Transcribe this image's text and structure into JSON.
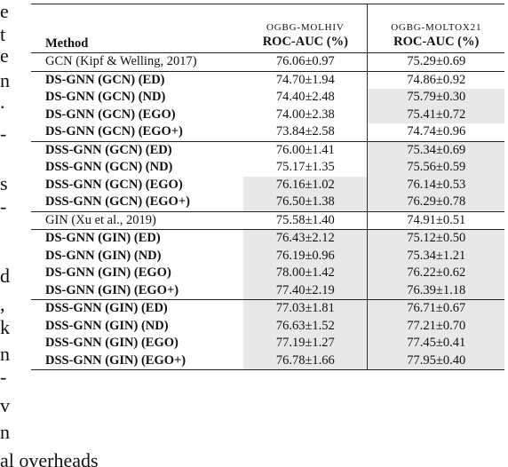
{
  "margin_fragments": [
    "e",
    "t",
    "e",
    "n",
    ".",
    "-",
    "s",
    "-",
    "d",
    ",",
    "k",
    "n",
    "-",
    "v",
    "n"
  ],
  "bottom_fragment": "al overheads",
  "table": {
    "header": {
      "method": "Method",
      "datasets": [
        {
          "name": "OGBG-MOLHIV",
          "metric": "ROC-AUC (%)"
        },
        {
          "name": "OGBG-MOLTOX21",
          "metric": "ROC-AUC (%)"
        }
      ]
    },
    "groups": [
      {
        "baseline": true,
        "rows": [
          {
            "method": "GCN (Kipf & Welling, 2017)",
            "molhiv": "76.06±0.97",
            "moltox21": "75.29±0.69",
            "hl_molhiv": false,
            "hl_moltox21": false
          }
        ]
      },
      {
        "baseline": false,
        "rows": [
          {
            "method": "DS-GNN (GCN) (ED)",
            "molhiv": "74.70±1.94",
            "moltox21": "74.86±0.92",
            "hl_molhiv": false,
            "hl_moltox21": false
          },
          {
            "method": "DS-GNN (GCN) (ND)",
            "molhiv": "74.40±2.48",
            "moltox21": "75.79±0.30",
            "hl_molhiv": false,
            "hl_moltox21": true
          },
          {
            "method": "DS-GNN (GCN) (EGO)",
            "molhiv": "74.00±2.38",
            "moltox21": "75.41±0.72",
            "hl_molhiv": false,
            "hl_moltox21": true
          },
          {
            "method": "DS-GNN (GCN) (EGO+)",
            "molhiv": "73.84±2.58",
            "moltox21": "74.74±0.96",
            "hl_molhiv": false,
            "hl_moltox21": false
          }
        ]
      },
      {
        "baseline": false,
        "rows": [
          {
            "method": "DSS-GNN (GCN) (ED)",
            "molhiv": "76.00±1.41",
            "moltox21": "75.34±0.69",
            "hl_molhiv": false,
            "hl_moltox21": true
          },
          {
            "method": "DSS-GNN (GCN) (ND)",
            "molhiv": "75.17±1.35",
            "moltox21": "75.56±0.59",
            "hl_molhiv": false,
            "hl_moltox21": true
          },
          {
            "method": "DSS-GNN (GCN) (EGO)",
            "molhiv": "76.16±1.02",
            "moltox21": "76.14±0.53",
            "hl_molhiv": true,
            "hl_moltox21": true
          },
          {
            "method": "DSS-GNN (GCN) (EGO+)",
            "molhiv": "76.50±1.38",
            "moltox21": "76.29±0.78",
            "hl_molhiv": true,
            "hl_moltox21": true
          }
        ]
      },
      {
        "baseline": true,
        "rows": [
          {
            "method": "GIN (Xu et al., 2019)",
            "molhiv": "75.58±1.40",
            "moltox21": "74.91±0.51",
            "hl_molhiv": false,
            "hl_moltox21": false
          }
        ]
      },
      {
        "baseline": false,
        "rows": [
          {
            "method": "DS-GNN (GIN) (ED)",
            "molhiv": "76.43±2.12",
            "moltox21": "75.12±0.50",
            "hl_molhiv": true,
            "hl_moltox21": true
          },
          {
            "method": "DS-GNN (GIN) (ND)",
            "molhiv": "76.19±0.96",
            "moltox21": "75.34±1.21",
            "hl_molhiv": true,
            "hl_moltox21": true
          },
          {
            "method": "DS-GNN (GIN) (EGO)",
            "molhiv": "78.00±1.42",
            "moltox21": "76.22±0.62",
            "hl_molhiv": true,
            "hl_moltox21": true
          },
          {
            "method": "DS-GNN (GIN) (EGO+)",
            "molhiv": "77.40±2.19",
            "moltox21": "76.39±1.18",
            "hl_molhiv": true,
            "hl_moltox21": true
          }
        ]
      },
      {
        "baseline": false,
        "rows": [
          {
            "method": "DSS-GNN (GIN) (ED)",
            "molhiv": "77.03±1.81",
            "moltox21": "76.71±0.67",
            "hl_molhiv": true,
            "hl_moltox21": true
          },
          {
            "method": "DSS-GNN (GIN) (ND)",
            "molhiv": "76.63±1.52",
            "moltox21": "77.21±0.70",
            "hl_molhiv": true,
            "hl_moltox21": true
          },
          {
            "method": "DSS-GNN (GIN) (EGO)",
            "molhiv": "77.19±1.27",
            "moltox21": "77.45±0.41",
            "hl_molhiv": true,
            "hl_moltox21": true
          },
          {
            "method": "DSS-GNN (GIN) (EGO+)",
            "molhiv": "76.78±1.66",
            "moltox21": "77.95±0.40",
            "hl_molhiv": true,
            "hl_moltox21": true
          }
        ]
      }
    ]
  }
}
